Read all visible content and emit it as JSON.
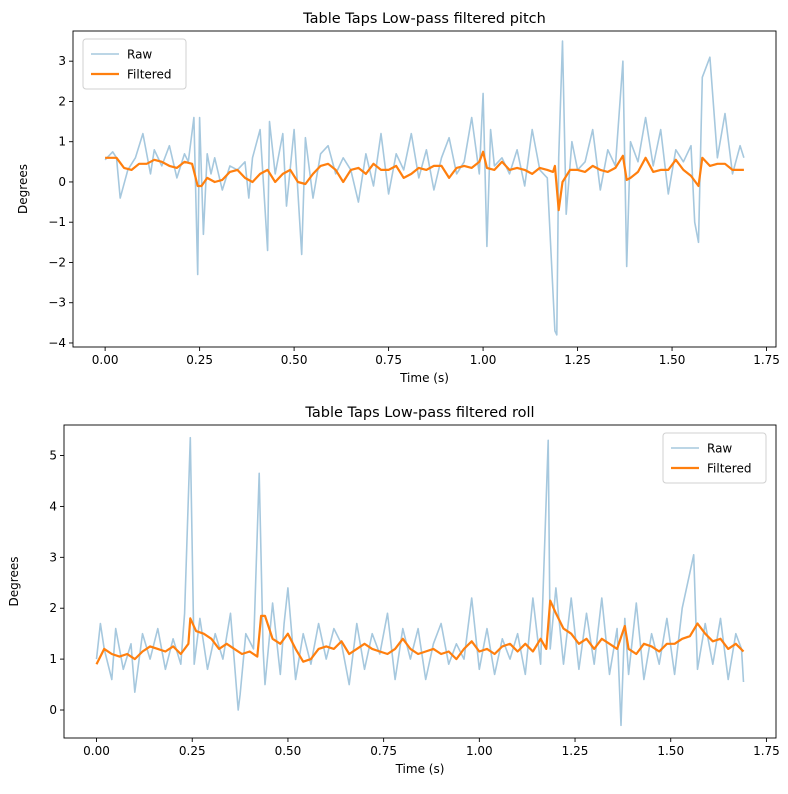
{
  "chart_data": [
    {
      "type": "line",
      "title": "Table Taps Low-pass filtered pitch",
      "xlabel": "Time (s)",
      "ylabel": "Degrees",
      "xlim": [
        -0.085,
        1.775
      ],
      "ylim": [
        -4.1,
        3.75
      ],
      "x_ticks": [
        0.0,
        0.25,
        0.5,
        0.75,
        1.0,
        1.25,
        1.5,
        1.75
      ],
      "x_tick_labels": [
        "0.00",
        "0.25",
        "0.50",
        "0.75",
        "1.00",
        "1.25",
        "1.50",
        "1.75"
      ],
      "y_ticks": [
        -4,
        -3,
        -2,
        -1,
        0,
        1,
        2,
        3
      ],
      "y_tick_labels": [
        "−4",
        "−3",
        "−2",
        "−1",
        "0",
        "1",
        "2",
        "3"
      ],
      "legend": "top-left",
      "series": [
        {
          "name": "Raw",
          "color": "#a6c8de",
          "x": [
            0.0,
            0.02,
            0.03,
            0.04,
            0.06,
            0.08,
            0.1,
            0.12,
            0.13,
            0.15,
            0.17,
            0.19,
            0.21,
            0.22,
            0.235,
            0.245,
            0.25,
            0.26,
            0.27,
            0.28,
            0.29,
            0.31,
            0.33,
            0.35,
            0.37,
            0.38,
            0.39,
            0.41,
            0.43,
            0.435,
            0.45,
            0.47,
            0.48,
            0.5,
            0.52,
            0.53,
            0.55,
            0.57,
            0.59,
            0.61,
            0.63,
            0.65,
            0.67,
            0.69,
            0.71,
            0.73,
            0.75,
            0.77,
            0.79,
            0.81,
            0.83,
            0.85,
            0.87,
            0.89,
            0.91,
            0.93,
            0.95,
            0.97,
            0.99,
            1.0,
            1.01,
            1.02,
            1.03,
            1.05,
            1.07,
            1.09,
            1.11,
            1.13,
            1.15,
            1.17,
            1.19,
            1.195,
            1.2,
            1.21,
            1.22,
            1.235,
            1.25,
            1.27,
            1.29,
            1.31,
            1.33,
            1.35,
            1.37,
            1.38,
            1.39,
            1.41,
            1.43,
            1.45,
            1.47,
            1.49,
            1.51,
            1.53,
            1.55,
            1.56,
            1.57,
            1.58,
            1.6,
            1.62,
            1.64,
            1.66,
            1.68,
            1.69
          ],
          "y": [
            0.55,
            0.75,
            0.6,
            -0.4,
            0.3,
            0.6,
            1.2,
            0.2,
            0.8,
            0.4,
            0.9,
            0.1,
            0.7,
            0.5,
            1.6,
            -2.3,
            1.6,
            -1.3,
            0.7,
            0.2,
            0.6,
            -0.2,
            0.4,
            0.3,
            0.5,
            -0.4,
            0.6,
            1.3,
            -1.7,
            1.5,
            0.2,
            1.2,
            -0.6,
            1.3,
            -1.8,
            1.1,
            -0.4,
            0.7,
            0.9,
            0.2,
            0.6,
            0.3,
            -0.5,
            0.7,
            -0.1,
            1.2,
            -0.3,
            0.7,
            0.3,
            1.2,
            0.1,
            0.8,
            -0.2,
            0.6,
            1.1,
            0.2,
            0.5,
            1.6,
            0.2,
            2.2,
            -1.6,
            1.3,
            0.4,
            0.6,
            0.2,
            0.8,
            -0.1,
            1.3,
            0.3,
            0.1,
            -3.7,
            -3.8,
            0.6,
            3.5,
            -0.8,
            1.0,
            0.3,
            0.5,
            1.3,
            -0.2,
            0.8,
            0.4,
            3.0,
            -2.1,
            1.0,
            0.5,
            1.6,
            0.4,
            1.3,
            -0.3,
            0.8,
            0.5,
            0.9,
            -1.0,
            -1.5,
            2.6,
            3.1,
            0.6,
            1.7,
            0.2,
            0.9,
            0.6
          ]
        },
        {
          "name": "Filtered",
          "color": "#ff7f0e",
          "x": [
            0.0,
            0.03,
            0.05,
            0.07,
            0.09,
            0.11,
            0.13,
            0.15,
            0.17,
            0.19,
            0.21,
            0.23,
            0.245,
            0.255,
            0.27,
            0.29,
            0.31,
            0.33,
            0.35,
            0.37,
            0.39,
            0.41,
            0.43,
            0.45,
            0.47,
            0.49,
            0.51,
            0.53,
            0.55,
            0.57,
            0.59,
            0.61,
            0.63,
            0.65,
            0.67,
            0.69,
            0.71,
            0.73,
            0.75,
            0.77,
            0.79,
            0.81,
            0.83,
            0.85,
            0.87,
            0.89,
            0.91,
            0.93,
            0.95,
            0.97,
            0.99,
            1.0,
            1.01,
            1.03,
            1.05,
            1.07,
            1.09,
            1.11,
            1.13,
            1.15,
            1.17,
            1.185,
            1.19,
            1.2,
            1.21,
            1.23,
            1.25,
            1.27,
            1.29,
            1.31,
            1.33,
            1.35,
            1.37,
            1.38,
            1.39,
            1.41,
            1.43,
            1.45,
            1.47,
            1.49,
            1.51,
            1.53,
            1.55,
            1.57,
            1.58,
            1.6,
            1.62,
            1.64,
            1.66,
            1.68,
            1.69
          ],
          "y": [
            0.6,
            0.6,
            0.35,
            0.3,
            0.45,
            0.45,
            0.55,
            0.5,
            0.4,
            0.35,
            0.5,
            0.45,
            -0.1,
            -0.1,
            0.1,
            0.0,
            0.05,
            0.25,
            0.3,
            0.1,
            0.0,
            0.2,
            0.3,
            0.0,
            0.2,
            0.3,
            0.0,
            -0.05,
            0.2,
            0.4,
            0.45,
            0.3,
            0.0,
            0.3,
            0.35,
            0.2,
            0.45,
            0.3,
            0.3,
            0.4,
            0.1,
            0.2,
            0.35,
            0.3,
            0.4,
            0.4,
            0.1,
            0.35,
            0.4,
            0.35,
            0.5,
            0.75,
            0.35,
            0.3,
            0.5,
            0.3,
            0.35,
            0.3,
            0.2,
            0.35,
            0.3,
            0.25,
            0.4,
            -0.7,
            0.0,
            0.3,
            0.3,
            0.25,
            0.4,
            0.3,
            0.25,
            0.35,
            0.65,
            0.05,
            0.1,
            0.25,
            0.6,
            0.25,
            0.3,
            0.3,
            0.55,
            0.3,
            0.15,
            -0.1,
            0.6,
            0.4,
            0.45,
            0.45,
            0.3,
            0.3,
            0.3
          ]
        }
      ]
    },
    {
      "type": "line",
      "title": "Table Taps Low-pass filtered roll",
      "xlabel": "Time (s)",
      "ylabel": "Degrees",
      "xlim": [
        -0.085,
        1.775
      ],
      "ylim": [
        -0.55,
        5.6
      ],
      "x_ticks": [
        0.0,
        0.25,
        0.5,
        0.75,
        1.0,
        1.25,
        1.5,
        1.75
      ],
      "x_tick_labels": [
        "0.00",
        "0.25",
        "0.50",
        "0.75",
        "1.00",
        "1.25",
        "1.50",
        "1.75"
      ],
      "y_ticks": [
        0,
        1,
        2,
        3,
        4,
        5
      ],
      "y_tick_labels": [
        "0",
        "1",
        "2",
        "3",
        "4",
        "5"
      ],
      "legend": "top-right",
      "series": [
        {
          "name": "Raw",
          "color": "#a6c8de",
          "x": [
            0.0,
            0.01,
            0.02,
            0.04,
            0.05,
            0.07,
            0.09,
            0.1,
            0.12,
            0.14,
            0.16,
            0.18,
            0.2,
            0.22,
            0.23,
            0.245,
            0.255,
            0.27,
            0.29,
            0.31,
            0.33,
            0.35,
            0.37,
            0.375,
            0.39,
            0.41,
            0.425,
            0.435,
            0.44,
            0.46,
            0.48,
            0.49,
            0.5,
            0.52,
            0.54,
            0.56,
            0.58,
            0.6,
            0.62,
            0.64,
            0.66,
            0.68,
            0.7,
            0.72,
            0.74,
            0.76,
            0.78,
            0.8,
            0.82,
            0.84,
            0.86,
            0.88,
            0.9,
            0.92,
            0.94,
            0.96,
            0.98,
            1.0,
            1.02,
            1.04,
            1.06,
            1.08,
            1.1,
            1.12,
            1.14,
            1.16,
            1.18,
            1.185,
            1.2,
            1.22,
            1.24,
            1.26,
            1.28,
            1.3,
            1.32,
            1.34,
            1.36,
            1.37,
            1.38,
            1.39,
            1.41,
            1.43,
            1.45,
            1.47,
            1.49,
            1.51,
            1.53,
            1.55,
            1.56,
            1.57,
            1.59,
            1.61,
            1.63,
            1.65,
            1.67,
            1.685,
            1.69
          ],
          "y": [
            1.0,
            1.7,
            1.2,
            0.6,
            1.6,
            0.8,
            1.3,
            0.35,
            1.5,
            1.0,
            1.6,
            0.8,
            1.4,
            0.9,
            1.9,
            5.35,
            0.9,
            1.8,
            0.8,
            1.5,
            1.0,
            1.9,
            0.0,
            0.3,
            1.5,
            1.2,
            4.65,
            1.2,
            0.5,
            2.1,
            0.7,
            1.7,
            2.4,
            0.6,
            1.5,
            0.9,
            1.7,
            1.0,
            1.6,
            1.3,
            0.5,
            1.7,
            0.8,
            1.5,
            1.1,
            1.9,
            0.6,
            1.6,
            1.0,
            1.6,
            0.6,
            1.3,
            1.7,
            0.9,
            1.3,
            1.0,
            2.2,
            0.8,
            1.6,
            0.7,
            1.4,
            1.0,
            1.5,
            0.7,
            2.2,
            0.9,
            5.3,
            1.2,
            2.4,
            0.9,
            2.2,
            0.8,
            1.9,
            0.9,
            2.2,
            0.7,
            1.6,
            -0.3,
            1.8,
            0.7,
            2.1,
            0.6,
            1.5,
            0.9,
            1.8,
            0.7,
            2.0,
            2.7,
            3.05,
            0.8,
            1.7,
            0.9,
            1.8,
            0.6,
            1.5,
            1.2,
            0.55
          ]
        },
        {
          "name": "Filtered",
          "color": "#ff7f0e",
          "x": [
            0.0,
            0.02,
            0.04,
            0.06,
            0.08,
            0.1,
            0.12,
            0.14,
            0.16,
            0.18,
            0.2,
            0.22,
            0.24,
            0.245,
            0.26,
            0.28,
            0.3,
            0.32,
            0.34,
            0.36,
            0.38,
            0.4,
            0.42,
            0.43,
            0.44,
            0.46,
            0.48,
            0.5,
            0.52,
            0.54,
            0.56,
            0.58,
            0.6,
            0.62,
            0.64,
            0.66,
            0.68,
            0.7,
            0.72,
            0.74,
            0.76,
            0.78,
            0.8,
            0.82,
            0.84,
            0.86,
            0.88,
            0.9,
            0.92,
            0.94,
            0.96,
            0.98,
            1.0,
            1.02,
            1.04,
            1.06,
            1.08,
            1.1,
            1.12,
            1.14,
            1.16,
            1.175,
            1.185,
            1.2,
            1.22,
            1.24,
            1.26,
            1.28,
            1.3,
            1.32,
            1.34,
            1.36,
            1.38,
            1.39,
            1.41,
            1.43,
            1.45,
            1.47,
            1.49,
            1.51,
            1.53,
            1.55,
            1.57,
            1.59,
            1.61,
            1.63,
            1.65,
            1.67,
            1.69
          ],
          "y": [
            0.9,
            1.2,
            1.1,
            1.05,
            1.1,
            1.0,
            1.15,
            1.25,
            1.2,
            1.15,
            1.25,
            1.1,
            1.3,
            1.8,
            1.55,
            1.5,
            1.4,
            1.2,
            1.3,
            1.2,
            1.1,
            1.15,
            1.05,
            1.85,
            1.85,
            1.4,
            1.3,
            1.5,
            1.2,
            0.95,
            1.0,
            1.2,
            1.25,
            1.2,
            1.35,
            1.1,
            1.2,
            1.3,
            1.2,
            1.15,
            1.1,
            1.2,
            1.4,
            1.2,
            1.1,
            1.15,
            1.2,
            1.1,
            1.15,
            1.0,
            1.2,
            1.35,
            1.15,
            1.2,
            1.1,
            1.25,
            1.3,
            1.15,
            1.3,
            1.15,
            1.4,
            1.2,
            2.15,
            1.9,
            1.6,
            1.5,
            1.3,
            1.4,
            1.2,
            1.4,
            1.3,
            1.2,
            1.65,
            1.2,
            1.1,
            1.3,
            1.25,
            1.15,
            1.3,
            1.3,
            1.4,
            1.45,
            1.7,
            1.5,
            1.35,
            1.4,
            1.2,
            1.3,
            1.15
          ]
        }
      ]
    }
  ]
}
